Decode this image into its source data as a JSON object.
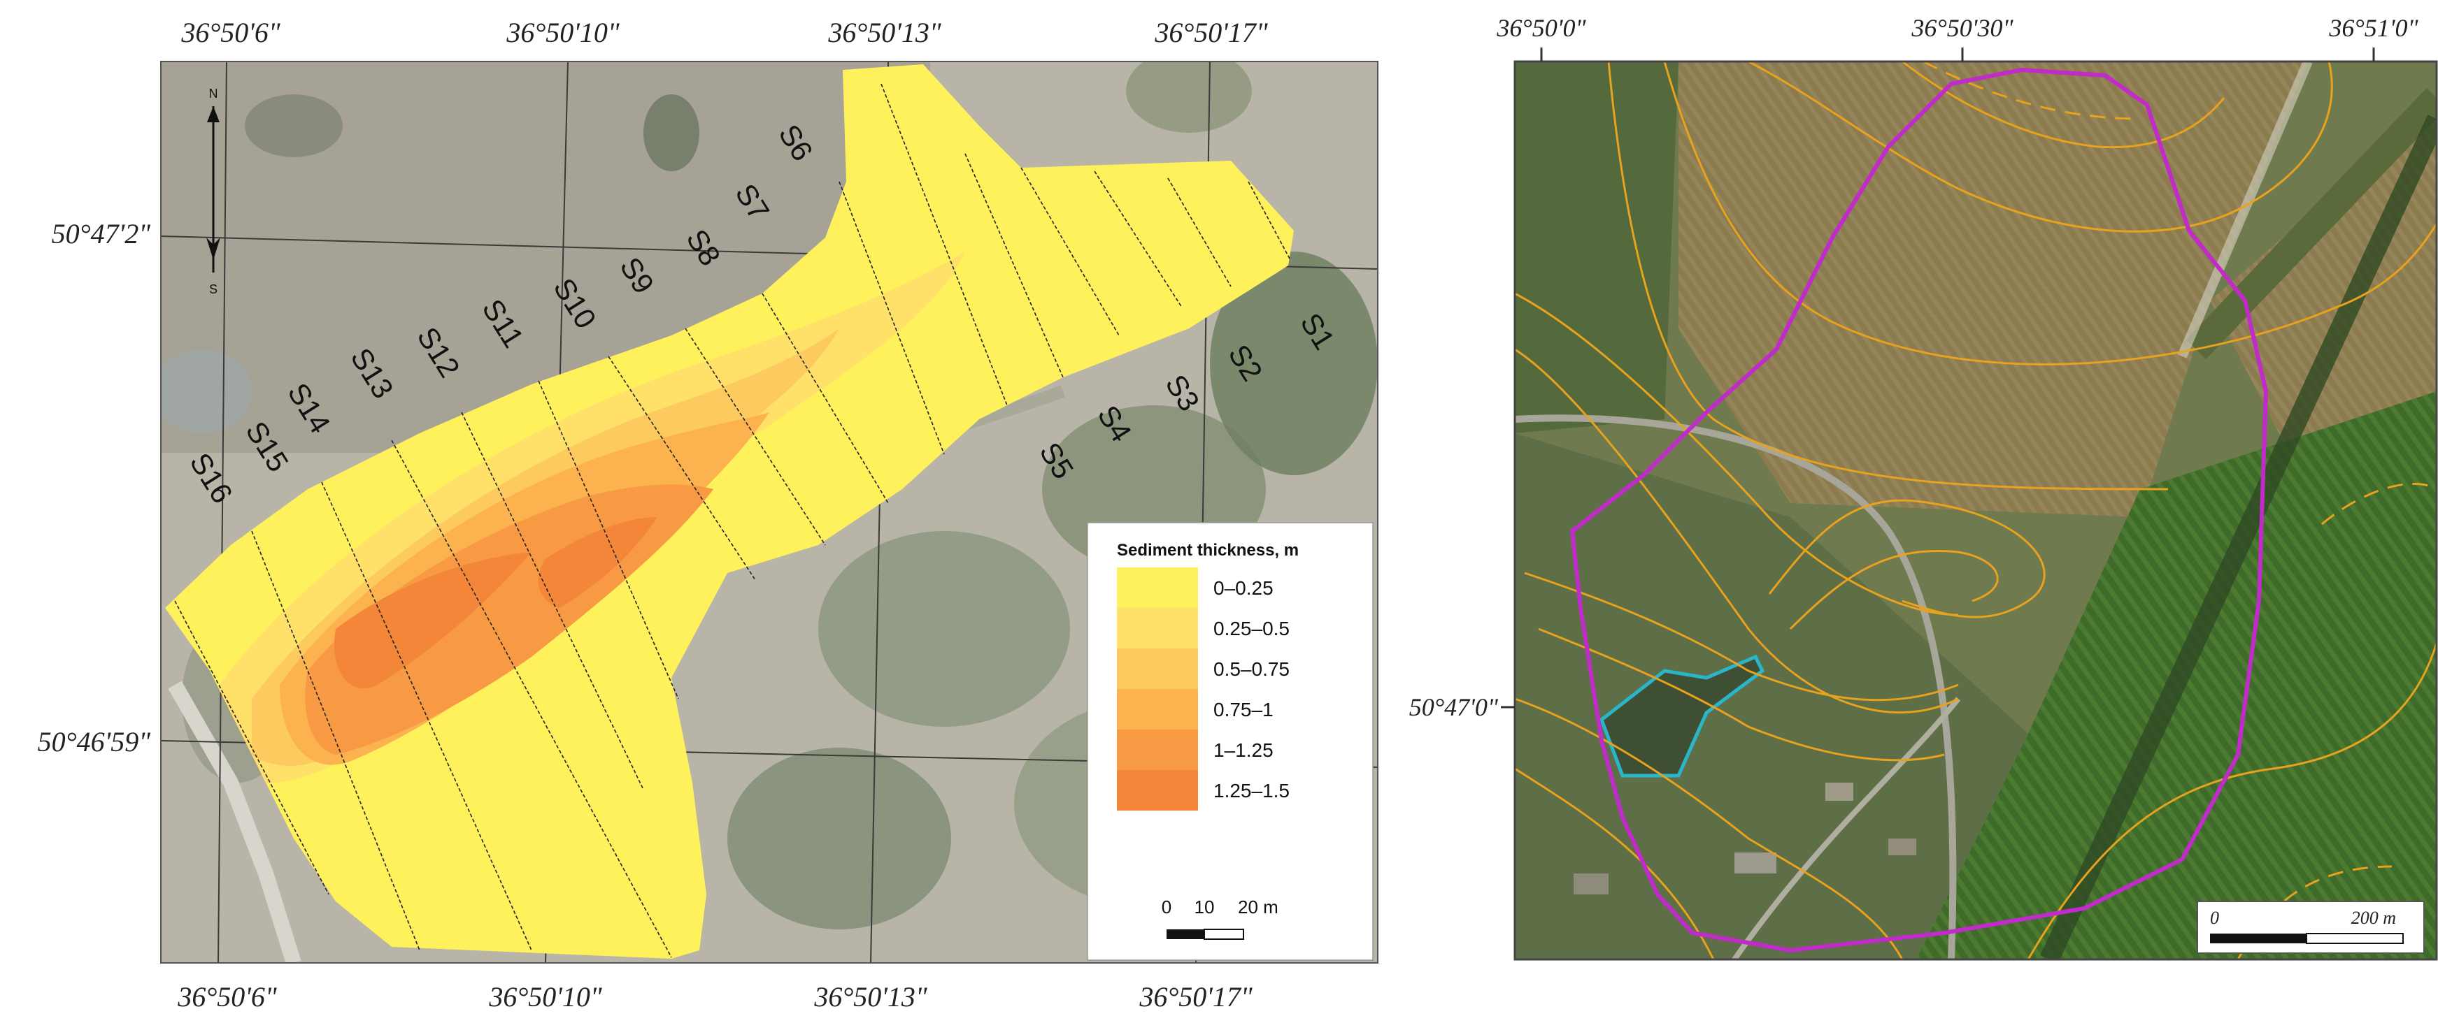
{
  "left_map": {
    "top_lon_labels": [
      "36°50'6\"",
      "36°50'10\"",
      "36°50'13\"",
      "36°50'17\""
    ],
    "bottom_lon_labels": [
      "36°50'6\"",
      "36°50'10\"",
      "36°50'13\"",
      "36°50'17\""
    ],
    "lat_labels": [
      "50°47'2\"",
      "50°46'59\""
    ],
    "north_arrow": {
      "n": "N",
      "s": "S"
    },
    "profile_labels": [
      "S1",
      "S2",
      "S3",
      "S4",
      "S5",
      "S6",
      "S7",
      "S8",
      "S9",
      "S10",
      "S11",
      "S12",
      "S13",
      "S14",
      "S15",
      "S16"
    ],
    "legend": {
      "title": "Sediment thickness, m",
      "classes": [
        {
          "label": "0–0.25",
          "color": "#FFF15C"
        },
        {
          "label": "0.25–0.5",
          "color": "#FFE068"
        },
        {
          "label": "0.5–0.75",
          "color": "#FDCA60"
        },
        {
          "label": "0.75–1",
          "color": "#FBB24F"
        },
        {
          "label": "1–1.25",
          "color": "#F79A43"
        },
        {
          "label": "1.25–1.5",
          "color": "#F4863A"
        }
      ],
      "scale_ticks": [
        "0",
        "10",
        "20 m"
      ]
    }
  },
  "right_map": {
    "top_lon_labels": [
      "36°50'0\"",
      "36°50'30\"",
      "36°51'0\""
    ],
    "lat_label": "50°47'0\"",
    "scale_ticks": [
      "0",
      "200 m"
    ],
    "boundary_color": "#C02BC9",
    "pond_outline_color": "#29B6C9",
    "contour_color": "#E8A21E"
  }
}
